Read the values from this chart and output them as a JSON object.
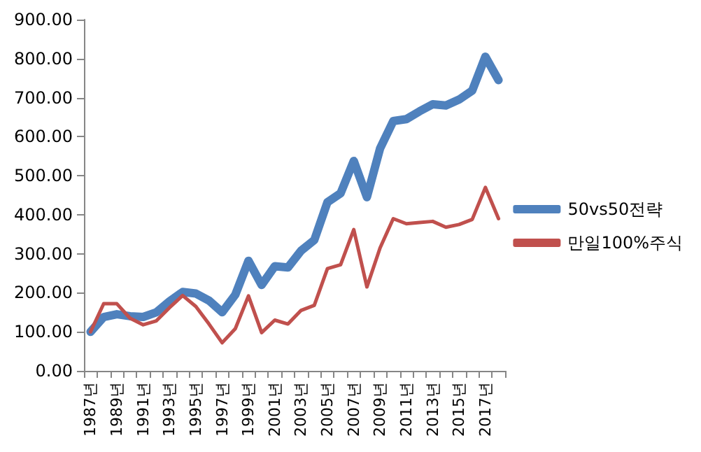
{
  "chart_data": {
    "type": "line",
    "categories": [
      "1987년",
      null,
      "1989년",
      null,
      "1991년",
      null,
      "1993년",
      null,
      "1995년",
      null,
      "1997년",
      null,
      "1999년",
      null,
      "2001년",
      null,
      "2003년",
      null,
      "2005년",
      null,
      "2007년",
      null,
      "2009년",
      null,
      "2011년",
      null,
      "2013년",
      null,
      "2015년",
      null,
      "2017년",
      null
    ],
    "series": [
      {
        "name": "50vs50전략",
        "color": "#4f81bd",
        "values": [
          100,
          138,
          145,
          140,
          138,
          150,
          178,
          202,
          198,
          180,
          150,
          195,
          282,
          220,
          268,
          265,
          308,
          335,
          432,
          455,
          538,
          445,
          570,
          640,
          645,
          665,
          683,
          680,
          695,
          718,
          805,
          745
        ]
      },
      {
        "name": "만일100%주식",
        "color": "#c0504d",
        "values": [
          100,
          172,
          172,
          135,
          118,
          128,
          162,
          193,
          165,
          120,
          72,
          108,
          192,
          98,
          130,
          120,
          155,
          168,
          262,
          272,
          362,
          215,
          315,
          390,
          377,
          380,
          383,
          368,
          375,
          388,
          470,
          390
        ]
      }
    ],
    "ylim": [
      0,
      900
    ],
    "yticks": [
      {
        "value": 0,
        "label": "0.00"
      },
      {
        "value": 100,
        "label": "100.00"
      },
      {
        "value": 200,
        "label": "200.00"
      },
      {
        "value": 300,
        "label": "300.00"
      },
      {
        "value": 400,
        "label": "400.00"
      },
      {
        "value": 500,
        "label": "500.00"
      },
      {
        "value": 600,
        "label": "600.00"
      },
      {
        "value": 700,
        "label": "700.00"
      },
      {
        "value": 800,
        "label": "800.00"
      },
      {
        "value": 900,
        "label": "900.00"
      }
    ],
    "grid": false,
    "legend": "right",
    "marker": "none",
    "line_style": "solid"
  }
}
